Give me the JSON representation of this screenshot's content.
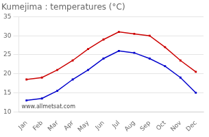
{
  "chart_data": {
    "type": "line",
    "title": "Kumejima : temperatures (°C)",
    "categories": [
      "Jan",
      "Feb",
      "Mar",
      "Apr",
      "May",
      "Jun",
      "Jul",
      "Aug",
      "Sep",
      "Oct",
      "Nov",
      "Dec"
    ],
    "series": [
      {
        "color": "#cc0000",
        "values": [
          18.5,
          19.0,
          21.0,
          23.5,
          26.5,
          29.0,
          31.0,
          30.5,
          30.0,
          27.0,
          23.5,
          20.5
        ]
      },
      {
        "color": "#0000cc",
        "values": [
          13.0,
          13.5,
          15.5,
          18.5,
          21.0,
          24.0,
          26.0,
          25.5,
          24.0,
          22.0,
          19.0,
          15.0
        ]
      }
    ],
    "marker": "square",
    "ylim": [
      10,
      35
    ],
    "yticks": [
      10,
      15,
      20,
      25,
      30,
      35
    ],
    "grid": "y",
    "annotations": [
      "www.allmetsat.com"
    ]
  }
}
